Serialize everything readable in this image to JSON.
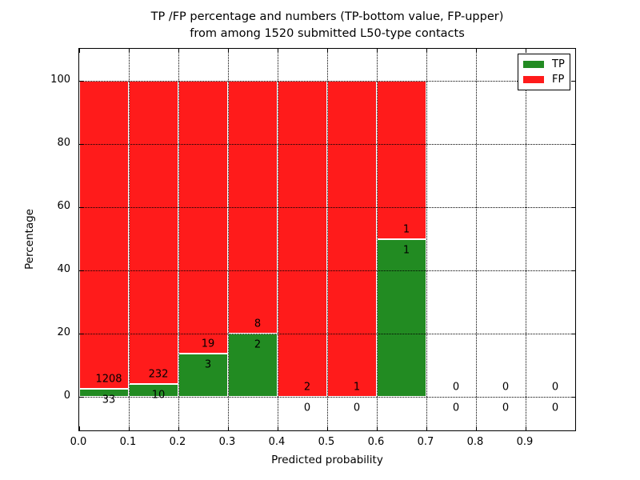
{
  "title": {
    "line1": "TP /FP percentage and numbers (TP-bottom value, FP-upper)",
    "line2": "from among 1520 submitted L50-type contacts"
  },
  "chart_data": {
    "type": "bar",
    "stacked": true,
    "normalization": "each bin scaled to 100% (TP bottom, FP top); annotations show raw counts",
    "title": "TP /FP percentage and numbers (TP-bottom value, FP-upper) from among 1520 submitted L50-type contacts",
    "total_submitted": 1520,
    "xlabel": "Predicted probability",
    "ylabel": "Percentage",
    "xlim": [
      0.0,
      1.0
    ],
    "ylim": [
      -10.6,
      110.1
    ],
    "grid": {
      "style": "dotted",
      "color": "#000000"
    },
    "x_ticks": [
      {
        "value": 0.0,
        "label": "0.0"
      },
      {
        "value": 0.1,
        "label": "0.1"
      },
      {
        "value": 0.2,
        "label": "0.2"
      },
      {
        "value": 0.3,
        "label": "0.3"
      },
      {
        "value": 0.4,
        "label": "0.4"
      },
      {
        "value": 0.5,
        "label": "0.5"
      },
      {
        "value": 0.6,
        "label": "0.6"
      },
      {
        "value": 0.7,
        "label": "0.7"
      },
      {
        "value": 0.8,
        "label": "0.8"
      },
      {
        "value": 0.9,
        "label": "0.9"
      }
    ],
    "y_ticks": [
      {
        "value": 0,
        "label": "0"
      },
      {
        "value": 20,
        "label": "20"
      },
      {
        "value": 40,
        "label": "40"
      },
      {
        "value": 60,
        "label": "60"
      },
      {
        "value": 80,
        "label": "80"
      },
      {
        "value": 100,
        "label": "100"
      }
    ],
    "bin_width": 0.1,
    "bins": [
      {
        "start": 0.0,
        "end": 0.1,
        "tp": 33,
        "fp": 1208
      },
      {
        "start": 0.1,
        "end": 0.2,
        "tp": 10,
        "fp": 232
      },
      {
        "start": 0.2,
        "end": 0.3,
        "tp": 3,
        "fp": 19
      },
      {
        "start": 0.3,
        "end": 0.4,
        "tp": 2,
        "fp": 8
      },
      {
        "start": 0.4,
        "end": 0.5,
        "tp": 0,
        "fp": 2
      },
      {
        "start": 0.5,
        "end": 0.6,
        "tp": 0,
        "fp": 1
      },
      {
        "start": 0.6,
        "end": 0.7,
        "tp": 1,
        "fp": 1
      },
      {
        "start": 0.7,
        "end": 0.8,
        "tp": 0,
        "fp": 0
      },
      {
        "start": 0.8,
        "end": 0.9,
        "tp": 0,
        "fp": 0
      },
      {
        "start": 0.9,
        "end": 1.0,
        "tp": 0,
        "fp": 0
      }
    ],
    "legend": {
      "position": "upper right",
      "entries": [
        {
          "label": "TP",
          "color": "#228B22"
        },
        {
          "label": "FP",
          "color": "#FF1B1B"
        }
      ]
    }
  }
}
